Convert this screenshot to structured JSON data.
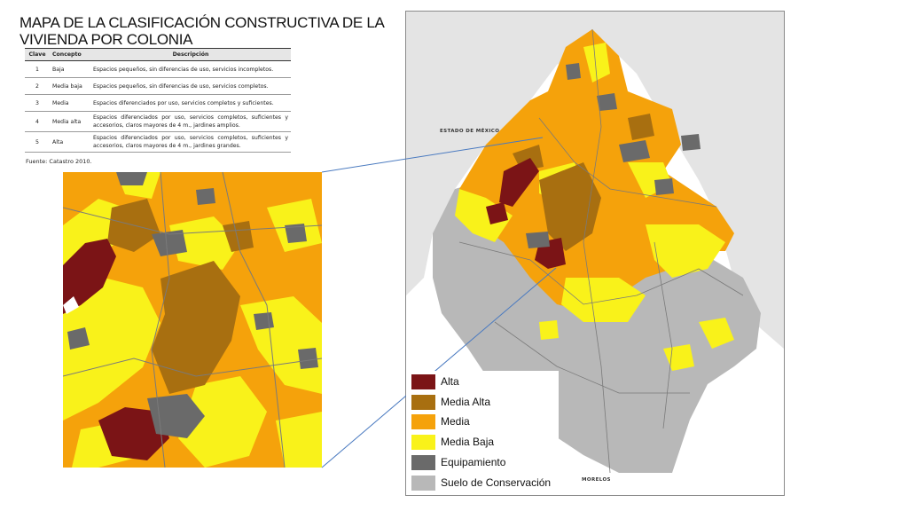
{
  "title": "MAPA DE LA CLASIFICACIÓN CONSTRUCTIVA DE LA VIVIENDA POR COLONIA",
  "table": {
    "headers": [
      "Clave",
      "Concepto",
      "Descripción"
    ],
    "rows": [
      {
        "clave": "1",
        "concepto": "Baja",
        "descripcion": "Espacios pequeños, sin diferencias de uso, servicios incompletos."
      },
      {
        "clave": "2",
        "concepto": "Media baja",
        "descripcion": "Espacios pequeños, sin diferencias de uso, servicios completos."
      },
      {
        "clave": "3",
        "concepto": "Media",
        "descripcion": "Espacios diferenciados por uso, servicios completos y suficientes."
      },
      {
        "clave": "4",
        "concepto": "Media alta",
        "descripcion": "Espacios diferenciados por uso, servicios completos, suficientes y accesorios, claros mayores de 4 m., jardines amplios."
      },
      {
        "clave": "5",
        "concepto": "Alta",
        "descripcion": "Espacios diferenciados por uso, servicios completos, suficientes y accesorios, claros mayores de 4 m., jardines grandes."
      }
    ]
  },
  "source": "Fuente: Catastro 2010.",
  "map_labels": {
    "estado_de_mexico": "ESTADO DE MÉXICO",
    "morelos": "MORELOS"
  },
  "legend": [
    {
      "label": "Alta",
      "color": "#7b1416"
    },
    {
      "label": "Media Alta",
      "color": "#a86f10"
    },
    {
      "label": "Media",
      "color": "#f5a20b"
    },
    {
      "label": "Media Baja",
      "color": "#f9f21a"
    },
    {
      "label": "Equipamiento",
      "color": "#6a6a6a"
    },
    {
      "label": "Suelo de Conservación",
      "color": "#b8b8b8"
    }
  ],
  "colors": {
    "outside_region": "#e4e4e4",
    "boundary_lines": "#7a7a7a",
    "connector_line": "#4a7ac0"
  }
}
